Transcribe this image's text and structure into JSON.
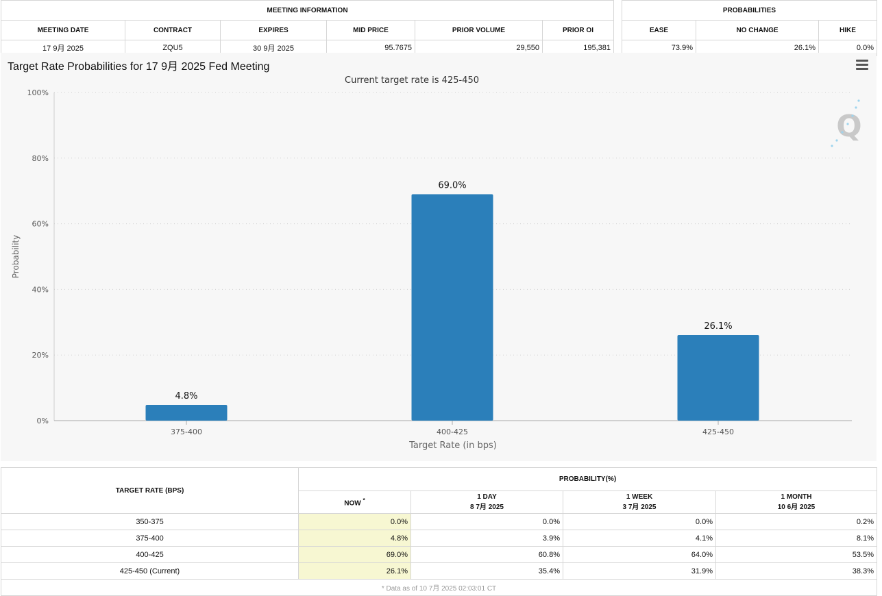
{
  "meeting": {
    "title": "MEETING INFORMATION",
    "headers": [
      "MEETING DATE",
      "CONTRACT",
      "EXPIRES",
      "MID PRICE",
      "PRIOR VOLUME",
      "PRIOR OI"
    ],
    "row": [
      "17 9月 2025",
      "ZQU5",
      "30 9月 2025",
      "95.7675",
      "29,550",
      "195,381"
    ]
  },
  "probabilities": {
    "title": "PROBABILITIES",
    "headers": [
      "EASE",
      "NO CHANGE",
      "HIKE"
    ],
    "row": [
      "73.9%",
      "26.1%",
      "0.0%"
    ]
  },
  "chart": {
    "title": "Target Rate Probabilities for 17 9月 2025 Fed Meeting",
    "logo": "Q"
  },
  "chart_data": {
    "type": "bar",
    "title": "Target Rate Probabilities for 17 9月 2025 Fed Meeting",
    "subtitle": "Current target rate is 425-450",
    "categories": [
      "375-400",
      "400-425",
      "425-450"
    ],
    "values": [
      4.8,
      69.0,
      26.1
    ],
    "data_labels": [
      "4.8%",
      "69.0%",
      "26.1%"
    ],
    "xlabel": "Target Rate (in bps)",
    "ylabel": "Probability",
    "ylim": [
      0,
      100
    ],
    "yticks": [
      0,
      20,
      40,
      60,
      80,
      100
    ],
    "ytick_labels": [
      "0%",
      "20%",
      "40%",
      "60%",
      "80%",
      "100%"
    ],
    "grid": true,
    "bar_color": "#2b7fba"
  },
  "rates_table": {
    "target_header": "TARGET RATE (BPS)",
    "prob_header": "PROBABILITY(%)",
    "now_label": "NOW",
    "now_mark": "*",
    "col_1day": "1 DAY",
    "col_1day_date": "8 7月 2025",
    "col_1week": "1 WEEK",
    "col_1week_date": "3 7月 2025",
    "col_1month": "1 MONTH",
    "col_1month_date": "10 6月 2025",
    "rows": [
      [
        "350-375",
        "0.0%",
        "0.0%",
        "0.0%",
        "0.2%"
      ],
      [
        "375-400",
        "4.8%",
        "3.9%",
        "4.1%",
        "8.1%"
      ],
      [
        "400-425",
        "69.0%",
        "60.8%",
        "64.0%",
        "53.5%"
      ],
      [
        "425-450 (Current)",
        "26.1%",
        "35.4%",
        "31.9%",
        "38.3%"
      ]
    ],
    "footnote": "* Data as of 10 7月 2025 02:03:01 CT"
  }
}
